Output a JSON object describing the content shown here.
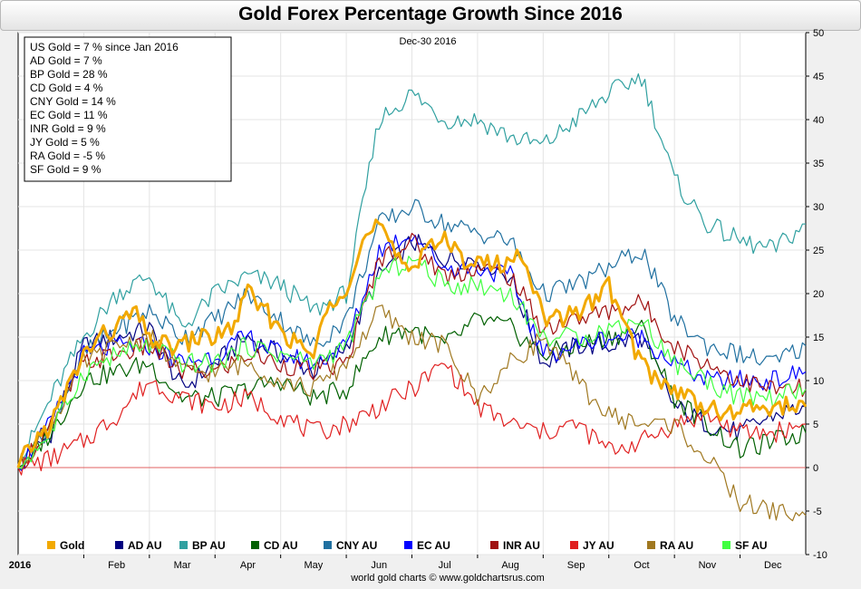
{
  "chart_data": {
    "type": "line",
    "title": "Gold Forex Percentage Growth Since 2016",
    "date_label": "Dec-30  2016",
    "credit": "world gold charts © www.goldchartsrus.com",
    "x_axis": {
      "year_label": "2016",
      "month_labels": [
        "Feb",
        "Mar",
        "Apr",
        "May",
        "Jun",
        "Jul",
        "Aug",
        "Sep",
        "Oct",
        "Nov",
        "Dec"
      ],
      "range": [
        0,
        12
      ]
    },
    "y_axis": {
      "ticks": [
        "50",
        "45",
        "40",
        "35",
        "30",
        "25",
        "20",
        "15",
        "10",
        "5",
        "0",
        "-5",
        "-10"
      ],
      "range": [
        -10,
        50
      ],
      "side": "right"
    },
    "grid": true,
    "reference_line": 0,
    "stats_box": [
      "US Gold = 7 % since Jan 2016",
      "AD Gold = 7 %",
      "BP Gold = 28 %",
      "CD Gold = 4 %",
      "CNY Gold = 14 %",
      "EC Gold = 11 %",
      "INR Gold = 9 %",
      "JY Gold = 5 %",
      "RA Gold = -5 %",
      "SF Gold = 9 %"
    ],
    "legend_position": "bottom",
    "series": [
      {
        "name": "Gold",
        "color": "#f2a900",
        "width": 3,
        "x": [
          0,
          0.25,
          0.5,
          0.75,
          1,
          1.25,
          1.5,
          1.75,
          2,
          2.25,
          2.5,
          2.75,
          3,
          3.25,
          3.5,
          3.75,
          4,
          4.25,
          4.5,
          4.75,
          5,
          5.25,
          5.5,
          5.75,
          6,
          6.25,
          6.5,
          6.75,
          7,
          7.25,
          7.5,
          7.75,
          8,
          8.25,
          8.5,
          8.75,
          9,
          9.25,
          9.5,
          9.75,
          10,
          10.25,
          10.5,
          10.75,
          11,
          11.25,
          11.5,
          11.75,
          12
        ],
        "y": [
          0,
          3,
          5,
          9,
          13,
          15,
          16,
          18,
          15,
          14,
          14,
          15,
          15,
          16,
          20,
          18,
          16,
          14,
          13,
          19,
          21,
          26,
          28,
          24,
          23,
          26,
          26,
          24,
          24,
          23,
          24,
          24,
          17,
          17,
          18,
          19,
          21,
          16,
          12,
          10,
          9,
          8,
          7,
          6,
          6.5,
          7,
          7,
          7,
          7
        ]
      },
      {
        "name": "AD AU",
        "color": "#000080",
        "width": 1.2,
        "x": [
          0,
          0.5,
          1,
          1.5,
          2,
          2.5,
          3,
          3.5,
          4,
          4.5,
          5,
          5.5,
          6,
          6.5,
          7,
          7.5,
          8,
          8.5,
          9,
          9.5,
          10,
          10.5,
          11,
          11.5,
          12
        ],
        "y": [
          0,
          4,
          14,
          15,
          16,
          9,
          12,
          15,
          13,
          11,
          14,
          22,
          26,
          24,
          24,
          22,
          12,
          14,
          14,
          15,
          7,
          5,
          4,
          6,
          7
        ]
      },
      {
        "name": "BP AU",
        "color": "#30a0a0",
        "width": 1.2,
        "x": [
          0,
          0.5,
          1,
          1.5,
          2,
          2.5,
          3,
          3.5,
          4,
          4.5,
          5,
          5.5,
          6,
          6.5,
          7,
          7.5,
          8,
          8.5,
          9,
          9.5,
          10,
          10.5,
          11,
          11.5,
          12
        ],
        "y": [
          0,
          8,
          15,
          20,
          22,
          16,
          20,
          22,
          21,
          18,
          20,
          40,
          43,
          40,
          40,
          38,
          37,
          40,
          43,
          45,
          33,
          28,
          26,
          25,
          28
        ]
      },
      {
        "name": "CD AU",
        "color": "#006000",
        "width": 1.2,
        "x": [
          0,
          0.5,
          1,
          1.5,
          2,
          2.5,
          3,
          3.5,
          4,
          4.5,
          5,
          5.5,
          6,
          6.5,
          7,
          7.5,
          8,
          8.5,
          9,
          9.5,
          10,
          10.5,
          11,
          11.5,
          12
        ],
        "y": [
          0,
          4,
          10,
          11,
          12,
          8,
          8,
          9,
          10,
          8,
          9,
          15,
          16,
          14,
          17,
          16,
          13,
          14,
          15,
          16,
          8,
          5,
          2,
          3,
          4
        ]
      },
      {
        "name": "CNY AU",
        "color": "#2070a0",
        "width": 1.2,
        "x": [
          0,
          0.5,
          1,
          1.5,
          2,
          2.5,
          3,
          3.5,
          4,
          4.5,
          5,
          5.5,
          6,
          6.5,
          7,
          7.5,
          8,
          8.5,
          9,
          9.5,
          10,
          10.5,
          11,
          11.5,
          12
        ],
        "y": [
          0,
          5,
          13,
          16,
          18,
          15,
          17,
          20,
          17,
          14,
          17,
          28,
          30,
          28,
          27,
          26,
          20,
          21,
          23,
          25,
          17,
          14,
          13,
          12,
          14
        ]
      },
      {
        "name": "EC AU",
        "color": "#0000ff",
        "width": 1.2,
        "x": [
          0,
          0.5,
          1,
          1.5,
          2,
          2.5,
          3,
          3.5,
          4,
          4.5,
          5,
          5.5,
          6,
          6.5,
          7,
          7.5,
          8,
          8.5,
          9,
          9.5,
          10,
          10.5,
          11,
          11.5,
          12
        ],
        "y": [
          0,
          5,
          13,
          14,
          14,
          12,
          13,
          15,
          13,
          12,
          14,
          25,
          27,
          23,
          23,
          22,
          13,
          14,
          15,
          15,
          12,
          10,
          10,
          10,
          11
        ]
      },
      {
        "name": "INR AU",
        "color": "#a01010",
        "width": 1.2,
        "x": [
          0,
          0.5,
          1,
          1.5,
          2,
          2.5,
          3,
          3.5,
          4,
          4.5,
          5,
          5.5,
          6,
          6.5,
          7,
          7.5,
          8,
          8.5,
          9,
          9.5,
          10,
          10.5,
          11,
          11.5,
          12
        ],
        "y": [
          0,
          5,
          12,
          13,
          14,
          11,
          11,
          13,
          12,
          11,
          12,
          24,
          26,
          22,
          23,
          22,
          16,
          17,
          18,
          19,
          14,
          12,
          10,
          9,
          9
        ]
      },
      {
        "name": "JY AU",
        "color": "#e02020",
        "width": 1.2,
        "x": [
          0,
          0.5,
          1,
          1.5,
          2,
          2.5,
          3,
          3.5,
          4,
          4.5,
          5,
          5.5,
          6,
          6.5,
          7,
          7.5,
          8,
          8.5,
          9,
          9.5,
          10,
          10.5,
          11,
          11.5,
          12
        ],
        "y": [
          0,
          1,
          3,
          6,
          10,
          8,
          7,
          8,
          6,
          4,
          5,
          7,
          9,
          12,
          7,
          5,
          4,
          5,
          2,
          3,
          5,
          6,
          4,
          4,
          5
        ]
      },
      {
        "name": "RA AU",
        "color": "#a07820",
        "width": 1.2,
        "x": [
          0,
          0.5,
          1,
          1.5,
          2,
          2.5,
          3,
          3.5,
          4,
          4.5,
          5,
          5.5,
          6,
          6.5,
          7,
          7.5,
          8,
          8.5,
          9,
          9.5,
          10,
          10.5,
          11,
          11.5,
          12
        ],
        "y": [
          0,
          5,
          12,
          14,
          15,
          11,
          11,
          12,
          10,
          9,
          12,
          18,
          15,
          14,
          8,
          12,
          15,
          10,
          6,
          5,
          5,
          1,
          -4,
          -5,
          -5.5
        ]
      },
      {
        "name": "SF AU",
        "color": "#40ff40",
        "width": 1.2,
        "x": [
          0,
          0.5,
          1,
          1.5,
          2,
          2.5,
          3,
          3.5,
          4,
          4.5,
          5,
          5.5,
          6,
          6.5,
          7,
          7.5,
          8,
          8.5,
          9,
          9.5,
          10,
          10.5,
          11,
          11.5,
          12
        ],
        "y": [
          0,
          4,
          11,
          13,
          14,
          12,
          12,
          14,
          13,
          12,
          14,
          22,
          24,
          21,
          21,
          20,
          15,
          15,
          16,
          17,
          12,
          10,
          8,
          8,
          9
        ]
      }
    ]
  }
}
